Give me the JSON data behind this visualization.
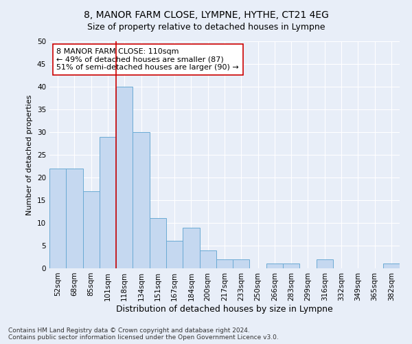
{
  "title": "8, MANOR FARM CLOSE, LYMPNE, HYTHE, CT21 4EG",
  "subtitle": "Size of property relative to detached houses in Lympne",
  "xlabel": "Distribution of detached houses by size in Lympne",
  "ylabel": "Number of detached properties",
  "categories": [
    "52sqm",
    "68sqm",
    "85sqm",
    "101sqm",
    "118sqm",
    "134sqm",
    "151sqm",
    "167sqm",
    "184sqm",
    "200sqm",
    "217sqm",
    "233sqm",
    "250sqm",
    "266sqm",
    "283sqm",
    "299sqm",
    "316sqm",
    "332sqm",
    "349sqm",
    "365sqm",
    "382sqm"
  ],
  "values": [
    22,
    22,
    17,
    29,
    40,
    30,
    11,
    6,
    9,
    4,
    2,
    2,
    0,
    1,
    1,
    0,
    2,
    0,
    0,
    0,
    1
  ],
  "bar_color": "#c5d8f0",
  "bar_edge_color": "#6aaad4",
  "vline_x_index": 4,
  "vline_color": "#cc0000",
  "annotation_text": "8 MANOR FARM CLOSE: 110sqm\n← 49% of detached houses are smaller (87)\n51% of semi-detached houses are larger (90) →",
  "annotation_box_color": "#ffffff",
  "annotation_box_edge": "#cc0000",
  "ylim": [
    0,
    50
  ],
  "yticks": [
    0,
    5,
    10,
    15,
    20,
    25,
    30,
    35,
    40,
    45,
    50
  ],
  "background_color": "#e8eef8",
  "footer_line1": "Contains HM Land Registry data © Crown copyright and database right 2024.",
  "footer_line2": "Contains public sector information licensed under the Open Government Licence v3.0.",
  "title_fontsize": 10,
  "subtitle_fontsize": 9,
  "xlabel_fontsize": 9,
  "ylabel_fontsize": 8,
  "tick_fontsize": 7.5,
  "annotation_fontsize": 8,
  "footer_fontsize": 6.5
}
